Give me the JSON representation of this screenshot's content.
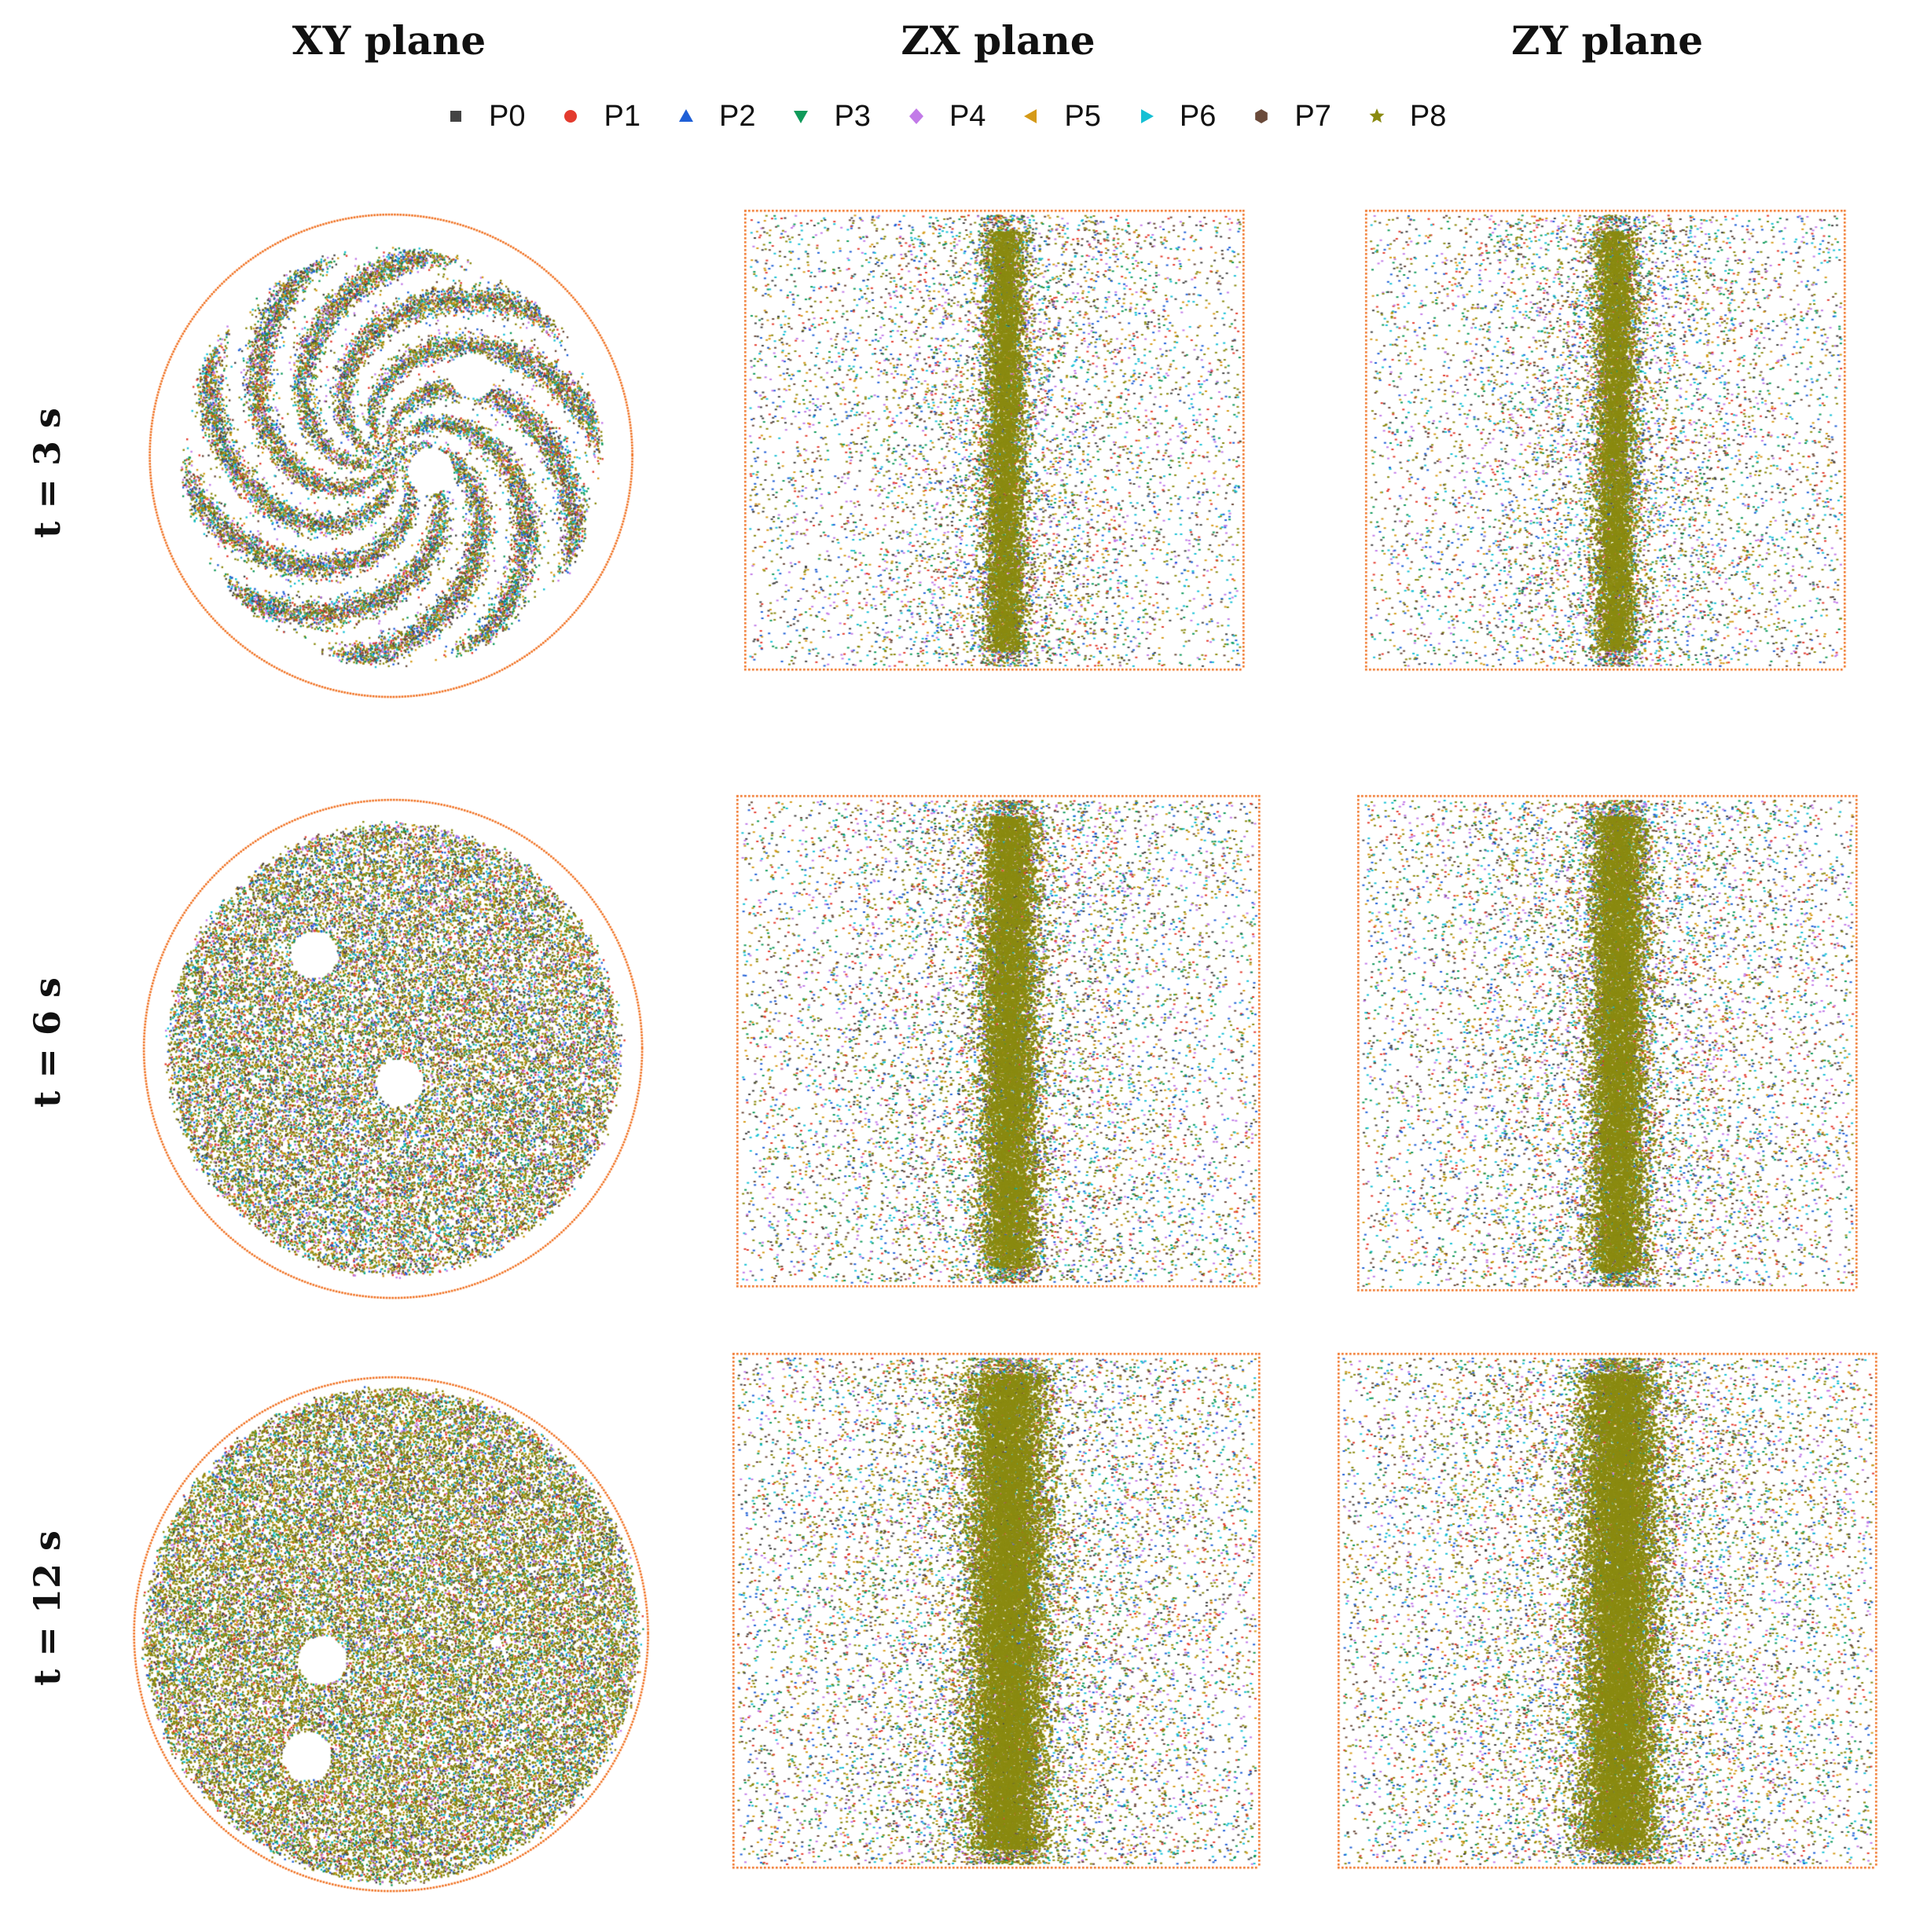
{
  "colors": {
    "boundary": "#f07020",
    "series": [
      "#444444",
      "#e33b2e",
      "#1f5fd6",
      "#109a5a",
      "#c27ae8",
      "#d59a17",
      "#16c0d4",
      "#6a4a3a",
      "#8a8a10"
    ]
  },
  "chart_data": {
    "type": "scatter",
    "title": "",
    "column_titles": [
      "XY plane",
      "ZX plane",
      "ZY plane"
    ],
    "row_labels": [
      "t = 3 s",
      "t = 6 s",
      "t = 12 s"
    ],
    "legend": [
      {
        "name": "P0",
        "marker": "square"
      },
      {
        "name": "P1",
        "marker": "circle"
      },
      {
        "name": "P2",
        "marker": "triangle-up"
      },
      {
        "name": "P3",
        "marker": "triangle-down"
      },
      {
        "name": "P4",
        "marker": "diamond"
      },
      {
        "name": "P5",
        "marker": "triangle-left"
      },
      {
        "name": "P6",
        "marker": "triangle-right"
      },
      {
        "name": "P7",
        "marker": "hexagon"
      },
      {
        "name": "P8",
        "marker": "star"
      }
    ],
    "panels": [
      {
        "row": 0,
        "plane": "XY",
        "view": "circle",
        "hole_angles_deg": [
          -45,
          20
        ],
        "hole_radius_fraction": [
          0.55,
          0.2
        ],
        "mixing_level": 0.3
      },
      {
        "row": 0,
        "plane": "ZX",
        "view": "box",
        "mixing_level": 0.3
      },
      {
        "row": 0,
        "plane": "ZY",
        "view": "box",
        "mixing_level": 0.3
      },
      {
        "row": 1,
        "plane": "XY",
        "view": "circle",
        "hole_angles_deg": [
          -130,
          80
        ],
        "hole_radius_fraction": [
          0.55,
          0.15
        ],
        "mixing_level": 0.6
      },
      {
        "row": 1,
        "plane": "ZX",
        "view": "box",
        "mixing_level": 0.6
      },
      {
        "row": 1,
        "plane": "ZY",
        "view": "box",
        "mixing_level": 0.6
      },
      {
        "row": 2,
        "plane": "XY",
        "view": "circle",
        "hole_angles_deg": [
          160,
          125
        ],
        "hole_radius_fraction": [
          0.3,
          0.6
        ],
        "mixing_level": 1.0
      },
      {
        "row": 2,
        "plane": "ZX",
        "view": "box",
        "mixing_level": 1.0
      },
      {
        "row": 2,
        "plane": "ZY",
        "view": "box",
        "mixing_level": 1.0
      }
    ]
  }
}
